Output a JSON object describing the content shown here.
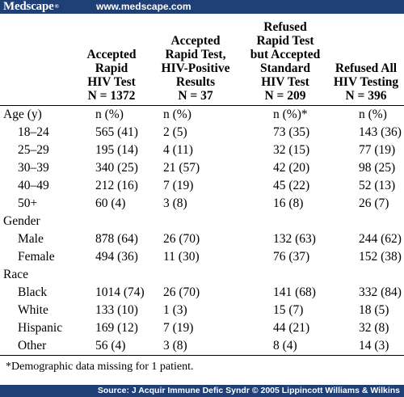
{
  "header": {
    "logo": "Medscape",
    "logo_mark": "®",
    "url": "www.medscape.com"
  },
  "table": {
    "columns": [
      {
        "lines": [
          "Accepted",
          "Rapid",
          "HIV Test",
          "N = 1372"
        ]
      },
      {
        "lines": [
          "Accepted",
          "Rapid Test,",
          "HIV-Positive",
          "Results",
          "N = 37"
        ]
      },
      {
        "lines": [
          "Refused",
          "Rapid Test",
          "but Accepted",
          "Standard",
          "HIV Test",
          "N = 209"
        ]
      },
      {
        "lines": [
          "Refused All",
          "HIV Testing",
          "N = 396"
        ]
      }
    ],
    "sections": [
      {
        "title": "Age (y)",
        "title_values": [
          "n (%)",
          "n (%)",
          "n (%)*",
          "n (%)"
        ],
        "rows": [
          {
            "label": "18–24",
            "values": [
              "565 (41)",
              "2 (5)",
              "73 (35)",
              "143 (36)"
            ]
          },
          {
            "label": "25–29",
            "values": [
              "195 (14)",
              "4 (11)",
              "32 (15)",
              "77 (19)"
            ]
          },
          {
            "label": "30–39",
            "values": [
              "340 (25)",
              "21 (57)",
              "42 (20)",
              "98 (25)"
            ]
          },
          {
            "label": "40–49",
            "values": [
              "212 (16)",
              "7 (19)",
              "45 (22)",
              "52 (13)"
            ]
          },
          {
            "label": "50+",
            "values": [
              "60 (4)",
              "3 (8)",
              "16 (8)",
              "26 (7)"
            ]
          }
        ]
      },
      {
        "title": "Gender",
        "title_values": [
          "",
          "",
          "",
          ""
        ],
        "rows": [
          {
            "label": "Male",
            "values": [
              "878 (64)",
              "26 (70)",
              "132 (63)",
              "244 (62)"
            ]
          },
          {
            "label": "Female",
            "values": [
              "494 (36)",
              "11 (30)",
              "76 (37)",
              "152 (38)"
            ]
          }
        ]
      },
      {
        "title": "Race",
        "title_values": [
          "",
          "",
          "",
          ""
        ],
        "rows": [
          {
            "label": "Black",
            "values": [
              "1014 (74)",
              "26 (70)",
              "141 (68)",
              "332 (84)"
            ]
          },
          {
            "label": "White",
            "values": [
              "133 (10)",
              "1 (3)",
              "15 (7)",
              "18 (5)"
            ]
          },
          {
            "label": "Hispanic",
            "values": [
              "169 (12)",
              "7 (19)",
              "44 (21)",
              "32 (8)"
            ]
          },
          {
            "label": "Other",
            "values": [
              "56 (4)",
              "3 (8)",
              "8 (4)",
              "14 (3)"
            ]
          }
        ]
      }
    ],
    "footnote": "*Demographic data missing for 1 patient."
  },
  "source": "Source: J Acquir Immune Defic Syndr © 2005 Lippincott Williams & Wilkins"
}
